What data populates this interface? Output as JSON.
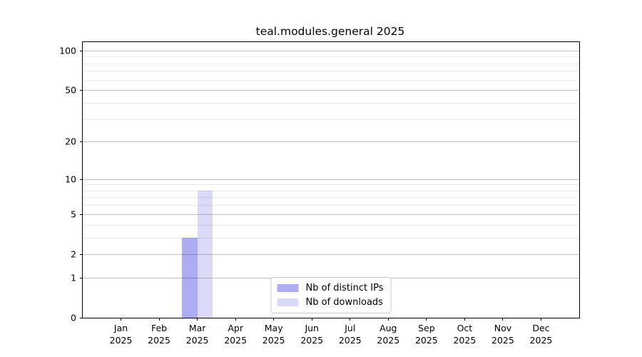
{
  "chart_data": {
    "type": "bar",
    "title": "teal.modules.general 2025",
    "categories": [
      "Jan",
      "Feb",
      "Mar",
      "Apr",
      "May",
      "Jun",
      "Jul",
      "Aug",
      "Sep",
      "Oct",
      "Nov",
      "Dec"
    ],
    "category_year_label": "2025",
    "series": [
      {
        "name": "Nb of distinct IPs",
        "color": "#acacf2",
        "values": [
          0,
          0,
          3,
          0,
          0,
          0,
          0,
          0,
          0,
          0,
          0,
          0
        ]
      },
      {
        "name": "Nb of downloads",
        "color": "#dbdbf9",
        "values": [
          0,
          0,
          8,
          0,
          0,
          0,
          0,
          0,
          0,
          0,
          0,
          0
        ]
      }
    ],
    "y_axis": {
      "scale": "log1p",
      "tick_values": [
        0,
        1,
        2,
        5,
        10,
        20,
        50,
        100
      ],
      "tick_labels": [
        "0",
        "1",
        "2",
        "5",
        "10",
        "20",
        "50",
        "100"
      ],
      "minor_tick_values": [
        3,
        4,
        6,
        7,
        8,
        9,
        30,
        40,
        60,
        70,
        80,
        90
      ],
      "range": [
        0,
        116
      ]
    },
    "x_axis": {
      "label_line2": "2025"
    },
    "grid": "horizontal, major and minor, drawn over bars",
    "legend_position": "bottom-center-inside",
    "colors": {
      "frame": "#000000",
      "text": "#000000",
      "legend_border": "#cccccc"
    }
  }
}
